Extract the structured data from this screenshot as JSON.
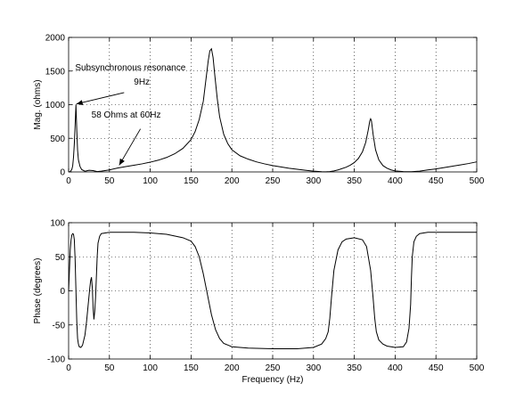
{
  "chart_data": [
    {
      "type": "line",
      "title": "",
      "xlabel": "",
      "ylabel": "Mag. (ohms)",
      "xlim": [
        0,
        500
      ],
      "ylim": [
        0,
        2000
      ],
      "xticks": [
        0,
        50,
        100,
        150,
        200,
        250,
        300,
        350,
        400,
        450,
        500
      ],
      "yticks": [
        0,
        500,
        1000,
        1500,
        2000
      ],
      "grid": true,
      "series": [
        {
          "x": [
            0,
            2,
            4,
            5,
            6,
            7,
            8,
            9,
            10,
            11,
            12,
            14,
            16,
            20,
            25,
            30,
            35,
            40,
            50,
            60,
            70,
            80,
            90,
            100,
            110,
            120,
            130,
            140,
            150,
            155,
            160,
            165,
            168,
            171,
            173,
            175,
            177,
            179,
            182,
            185,
            190,
            195,
            200,
            210,
            220,
            230,
            240,
            250,
            260,
            270,
            280,
            290,
            300,
            310,
            315,
            320,
            325,
            330,
            340,
            345,
            350,
            355,
            360,
            364,
            367,
            369,
            370,
            371,
            373,
            376,
            380,
            385,
            390,
            395,
            400,
            410,
            420,
            430,
            440,
            450,
            460,
            470,
            480,
            490,
            500
          ],
          "y": [
            0,
            5,
            40,
            90,
            220,
            420,
            700,
            1000,
            620,
            320,
            180,
            80,
            35,
            10,
            25,
            20,
            5,
            12,
            30,
            58,
            80,
            100,
            120,
            145,
            175,
            215,
            270,
            350,
            480,
            600,
            780,
            1050,
            1350,
            1650,
            1800,
            1830,
            1700,
            1450,
            1100,
            820,
            560,
            420,
            330,
            240,
            190,
            150,
            120,
            95,
            75,
            55,
            40,
            25,
            12,
            4,
            2,
            5,
            15,
            30,
            70,
            100,
            140,
            200,
            300,
            440,
            620,
            760,
            790,
            760,
            560,
            330,
            180,
            95,
            55,
            30,
            15,
            5,
            3,
            12,
            30,
            45,
            65,
            85,
            105,
            125,
            150
          ]
        }
      ],
      "annotations": [
        {
          "text": "Subsynchronous resonance",
          "x": 8,
          "y": 1510
        },
        {
          "text": "9Hz",
          "x": 80,
          "y": 1300
        },
        {
          "text": "58 Ohms at 60Hz",
          "x": 28,
          "y": 810
        }
      ]
    },
    {
      "type": "line",
      "title": "",
      "xlabel": "Frequency (Hz)",
      "ylabel": "Phase (degrees)",
      "xlim": [
        0,
        500
      ],
      "ylim": [
        -100,
        100
      ],
      "xticks": [
        0,
        50,
        100,
        150,
        200,
        250,
        300,
        350,
        400,
        450,
        500
      ],
      "yticks": [
        -100,
        -50,
        0,
        50,
        100
      ],
      "grid": true,
      "series": [
        {
          "x": [
            0,
            1,
            2,
            3,
            4,
            5,
            6,
            7,
            8,
            9,
            10,
            11,
            12,
            13,
            15,
            17,
            20,
            22,
            24,
            26,
            27,
            28,
            29,
            30,
            31,
            32,
            33,
            34,
            35,
            36,
            38,
            40,
            45,
            50,
            60,
            80,
            100,
            120,
            140,
            150,
            155,
            160,
            165,
            170,
            175,
            180,
            185,
            190,
            200,
            220,
            250,
            280,
            300,
            310,
            315,
            318,
            320,
            322,
            325,
            330,
            335,
            340,
            350,
            360,
            365,
            370,
            373,
            375,
            377,
            380,
            385,
            390,
            400,
            410,
            414,
            417,
            419,
            420,
            421,
            423,
            426,
            430,
            440,
            450,
            460,
            500
          ],
          "y": [
            0,
            30,
            60,
            75,
            82,
            84,
            83,
            75,
            45,
            0,
            -45,
            -70,
            -78,
            -82,
            -83,
            -80,
            -65,
            -45,
            -20,
            5,
            15,
            20,
            5,
            -25,
            -42,
            -30,
            -10,
            20,
            50,
            70,
            80,
            84,
            85,
            86,
            86,
            86,
            85,
            83,
            78,
            73,
            65,
            50,
            25,
            -5,
            -35,
            -57,
            -70,
            -77,
            -82,
            -84,
            -85,
            -85,
            -83,
            -78,
            -70,
            -60,
            -40,
            -10,
            30,
            60,
            72,
            76,
            78,
            75,
            65,
            30,
            -10,
            -40,
            -60,
            -72,
            -78,
            -81,
            -83,
            -82,
            -75,
            -55,
            -20,
            20,
            50,
            72,
            80,
            84,
            86,
            86,
            86,
            86
          ]
        }
      ],
      "annotations": []
    }
  ]
}
